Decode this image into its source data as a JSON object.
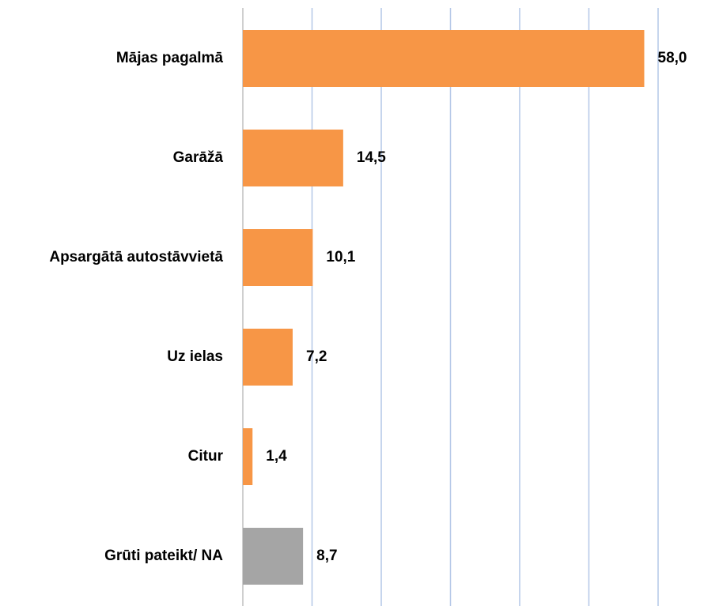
{
  "chart_data": {
    "type": "barh",
    "categories": [
      "Mājas pagalmā",
      "Garāžā",
      "Apsargātā autostāvvietā",
      "Uz ielas",
      "Citur",
      "Grūti pateikt/ NA"
    ],
    "values": [
      58.0,
      14.5,
      10.1,
      7.2,
      1.4,
      8.7
    ],
    "value_labels": [
      "58,0",
      "14,5",
      "10,1",
      "7,2",
      "1,4",
      "8,7"
    ],
    "colors": [
      "#f79646",
      "#f79646",
      "#f79646",
      "#f79646",
      "#f79646",
      "#a5a5a5"
    ],
    "xlim": [
      0,
      60
    ],
    "xticks": [
      0,
      10,
      20,
      30,
      40,
      50,
      60
    ],
    "grid": true
  }
}
